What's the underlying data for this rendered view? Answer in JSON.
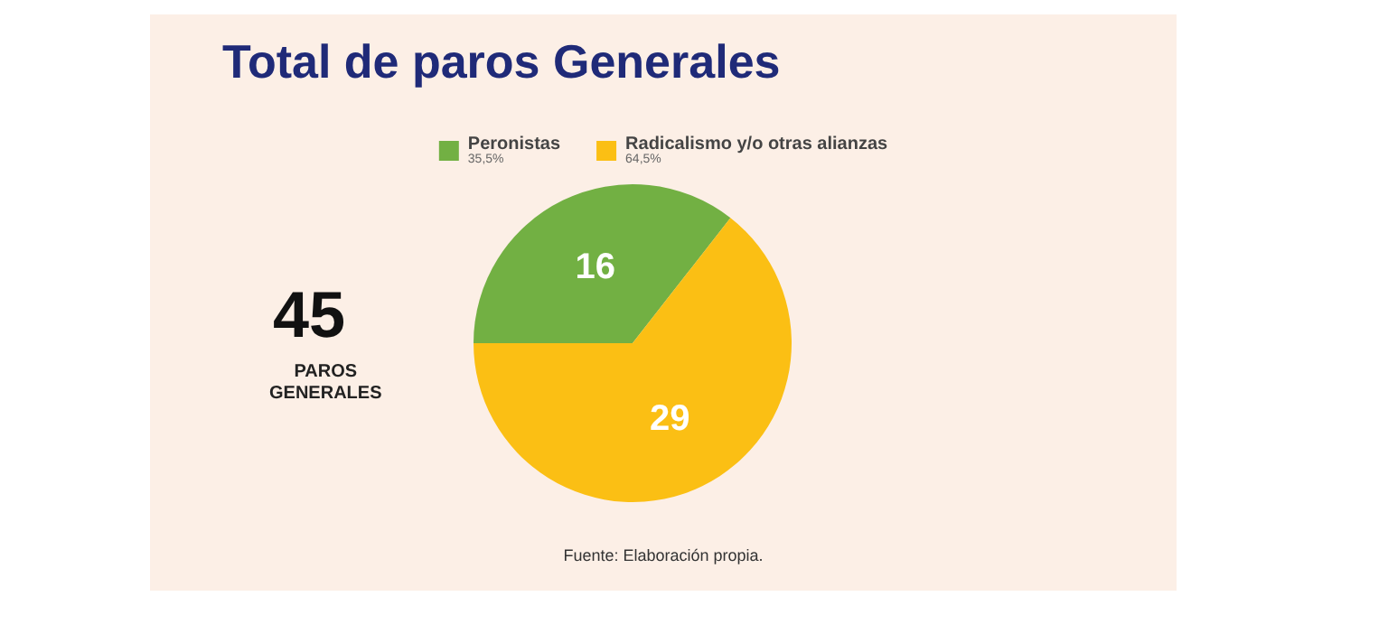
{
  "chart_data": {
    "type": "pie",
    "title": "Total de paros Generales",
    "categories": [
      "Peronistas",
      "Radicalismo y/o otras alianzas"
    ],
    "values": [
      16,
      29
    ],
    "colors": [
      "#72b043",
      "#fbbf14"
    ],
    "data_labels": true,
    "legend": "top",
    "annotations": [
      "35,5%",
      "64,5%",
      "45",
      "PAROS GENERALES",
      "Fuente: Elaboración propia."
    ]
  }
}
